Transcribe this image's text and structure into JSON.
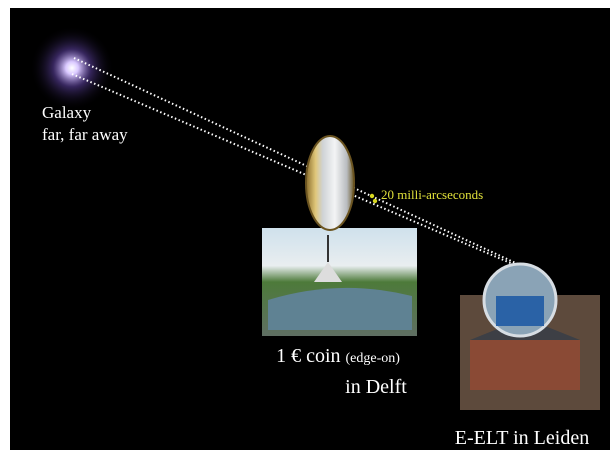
{
  "galaxy": {
    "line1": "Galaxy",
    "line2": "far, far away"
  },
  "angle_label": "20 milli-arcseconds",
  "coin": {
    "line1": "1 € coin",
    "note": "(edge-on)",
    "line2": "in Delft"
  },
  "telescope": {
    "label": "E-ELT in Leiden"
  }
}
